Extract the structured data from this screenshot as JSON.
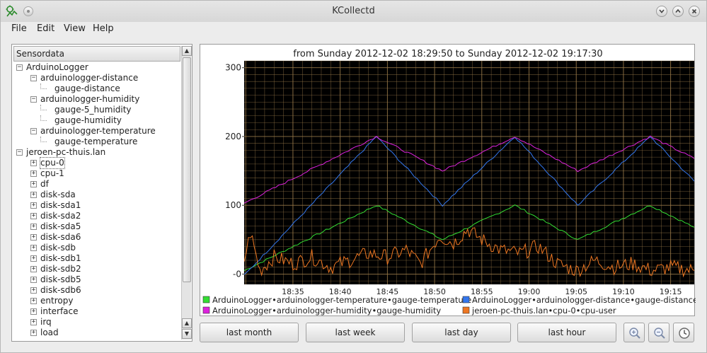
{
  "window": {
    "title": "KCollectd"
  },
  "menu": {
    "file": "File",
    "edit": "Edit",
    "view": "View",
    "help": "Help"
  },
  "tree": {
    "header": "Sensordata",
    "items": [
      {
        "label": "ArduinoLogger",
        "level": 0,
        "expander": "minus"
      },
      {
        "label": "arduinologger-distance",
        "level": 1,
        "expander": "minus"
      },
      {
        "label": "gauge-distance",
        "level": 2,
        "expander": "none"
      },
      {
        "label": "arduinologger-humidity",
        "level": 1,
        "expander": "minus"
      },
      {
        "label": "gauge-5_humidity",
        "level": 2,
        "expander": "none"
      },
      {
        "label": "gauge-humidity",
        "level": 2,
        "expander": "none"
      },
      {
        "label": "arduinologger-temperature",
        "level": 1,
        "expander": "minus"
      },
      {
        "label": "gauge-temperature",
        "level": 2,
        "expander": "none"
      },
      {
        "label": "jeroen-pc-thuis.lan",
        "level": 0,
        "expander": "minus"
      },
      {
        "label": "cpu-0",
        "level": 1,
        "expander": "plus",
        "selected": true
      },
      {
        "label": "cpu-1",
        "level": 1,
        "expander": "plus"
      },
      {
        "label": "df",
        "level": 1,
        "expander": "plus"
      },
      {
        "label": "disk-sda",
        "level": 1,
        "expander": "plus"
      },
      {
        "label": "disk-sda1",
        "level": 1,
        "expander": "plus"
      },
      {
        "label": "disk-sda2",
        "level": 1,
        "expander": "plus"
      },
      {
        "label": "disk-sda5",
        "level": 1,
        "expander": "plus"
      },
      {
        "label": "disk-sda6",
        "level": 1,
        "expander": "plus"
      },
      {
        "label": "disk-sdb",
        "level": 1,
        "expander": "plus"
      },
      {
        "label": "disk-sdb1",
        "level": 1,
        "expander": "plus"
      },
      {
        "label": "disk-sdb2",
        "level": 1,
        "expander": "plus"
      },
      {
        "label": "disk-sdb5",
        "level": 1,
        "expander": "plus"
      },
      {
        "label": "disk-sdb6",
        "level": 1,
        "expander": "plus"
      },
      {
        "label": "entropy",
        "level": 1,
        "expander": "plus"
      },
      {
        "label": "interface",
        "level": 1,
        "expander": "plus"
      },
      {
        "label": "irq",
        "level": 1,
        "expander": "plus"
      },
      {
        "label": "load",
        "level": 1,
        "expander": "plus"
      }
    ]
  },
  "buttons": {
    "last_month": "last month",
    "last_week": "last week",
    "last_day": "last day",
    "last_hour": "last hour",
    "zoom_in_icon": "zoom-in-icon",
    "zoom_out_icon": "zoom-out-icon",
    "auto_update_icon": "clock-icon"
  },
  "chart_data": {
    "type": "line",
    "title": "from Sunday 2012-12-02 18:29:50 to Sunday 2012-12-02 19:17:30",
    "x_start": "18:29:50",
    "x_end": "19:17:30",
    "x_ticks": [
      "18:35",
      "18:40",
      "18:45",
      "18:50",
      "18:55",
      "19:00",
      "19:05",
      "19:10",
      "19:15"
    ],
    "y_ticks": [
      "-0",
      "100",
      "200",
      "300"
    ],
    "ylim": [
      -15,
      310
    ],
    "background": "#000000",
    "grid_color": "#9a7a4a",
    "grid": true,
    "legend_position": "bottom",
    "series": [
      {
        "name": "ArduinoLogger•arduinologger-temperature•gauge-temperature",
        "color": "#33dd33",
        "x": [
          "18:29:50",
          "18:43:50",
          "18:50:50",
          "18:58:30",
          "19:05:10",
          "19:12:50",
          "19:17:30"
        ],
        "values": [
          5,
          100,
          50,
          100,
          50,
          100,
          68
        ]
      },
      {
        "name": "ArduinoLogger•arduinologger-distance•gauge-distance",
        "color": "#3377ee",
        "x": [
          "18:29:50",
          "18:43:50",
          "18:50:50",
          "18:58:30",
          "19:05:10",
          "19:12:50",
          "19:17:30"
        ],
        "values": [
          -2,
          200,
          100,
          200,
          100,
          200,
          135
        ]
      },
      {
        "name": "ArduinoLogger•arduinologger-humidity•gauge-humidity",
        "color": "#dd22dd",
        "x": [
          "18:29:50",
          "18:43:50",
          "18:50:50",
          "18:58:30",
          "19:05:10",
          "19:12:50",
          "19:17:30"
        ],
        "values": [
          103,
          200,
          150,
          200,
          150,
          200,
          168
        ]
      },
      {
        "name": "jeroen-pc-thuis.lan•cpu-0•cpu-user",
        "color": "#ee7722",
        "x": [
          "18:29:50",
          "18:30:30",
          "18:31:30",
          "18:33:00",
          "18:35:00",
          "18:37:00",
          "18:39:00",
          "18:41:00",
          "18:43:00",
          "18:45:00",
          "18:47:00",
          "18:48:30",
          "18:50:30",
          "18:52:00",
          "18:53:30",
          "18:55:00",
          "18:57:00",
          "18:59:00",
          "19:01:00",
          "19:03:00",
          "19:05:00",
          "19:07:00",
          "19:09:00",
          "19:11:00",
          "19:13:00",
          "19:15:00",
          "19:17:30"
        ],
        "values": [
          20,
          60,
          5,
          25,
          15,
          25,
          10,
          20,
          30,
          25,
          35,
          15,
          55,
          45,
          65,
          50,
          35,
          30,
          40,
          15,
          5,
          20,
          10,
          15,
          5,
          10,
          5
        ]
      }
    ]
  }
}
